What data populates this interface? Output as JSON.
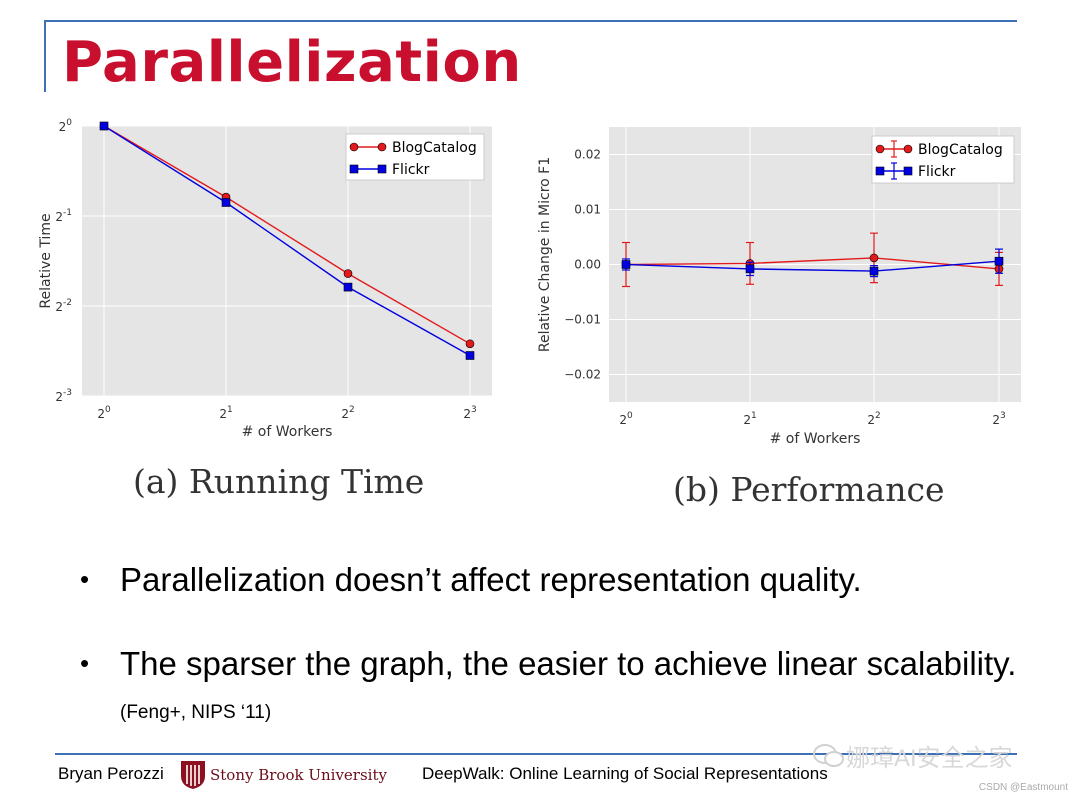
{
  "slide": {
    "title": "Parallelization",
    "captions": {
      "a": "(a) Running Time",
      "b": "(b) Performance"
    },
    "bullets": [
      {
        "text": "Parallelization doesn’t affect representation quality.",
        "cite": ""
      },
      {
        "text": "The sparser the graph, the easier to achieve linear scalability.",
        "cite": "(Feng+, NIPS ‘11)"
      }
    ]
  },
  "footer": {
    "author": "Bryan Perozzi",
    "university": "Stony Brook University",
    "talk": "DeepWalk: Online Learning of Social Representations",
    "watermark": "娜璋AI安全之家",
    "credit": "CSDN @Eastmount"
  },
  "colors": {
    "blogcatalog": "#e31a1c",
    "flickr": "#0000e0",
    "plot_bg": "#e5e5e5",
    "title": "#c8102e"
  },
  "chart_data": [
    {
      "type": "line",
      "id": "running-time",
      "xlabel": "# of Workers",
      "ylabel": "Relative Time",
      "x_scale": "log2",
      "y_scale": "log2",
      "x": [
        1,
        2,
        4,
        8
      ],
      "xticks": [
        "2^0",
        "2^1",
        "2^2",
        "2^3"
      ],
      "yticks": [
        "2^0",
        "2^-1",
        "2^-2",
        "2^-3"
      ],
      "ylim_log2": [
        -3,
        0
      ],
      "series": [
        {
          "name": "BlogCatalog",
          "marker": "circle",
          "values_log2": [
            0,
            -0.79,
            -1.64,
            -2.42
          ]
        },
        {
          "name": "Flickr",
          "marker": "square",
          "values_log2": [
            0,
            -0.85,
            -1.79,
            -2.55
          ]
        }
      ],
      "legend": "top-right",
      "grid": true
    },
    {
      "type": "line",
      "id": "performance",
      "xlabel": "# of Workers",
      "ylabel": "Relative Change in Micro F1",
      "x_scale": "log2",
      "x": [
        1,
        2,
        4,
        8
      ],
      "xticks": [
        "2^0",
        "2^1",
        "2^2",
        "2^3"
      ],
      "yticks": [
        "0.02",
        "0.01",
        "0.00",
        "−0.01",
        "−0.02"
      ],
      "ylim": [
        -0.025,
        0.025
      ],
      "series": [
        {
          "name": "BlogCatalog",
          "marker": "circle",
          "errorbars": true,
          "values": [
            0.0,
            0.0002,
            0.0012,
            -0.0008
          ],
          "err": [
            0.004,
            0.0038,
            0.0045,
            0.003
          ]
        },
        {
          "name": "Flickr",
          "marker": "square",
          "errorbars": true,
          "values": [
            0.0,
            -0.0008,
            -0.0012,
            0.0006
          ],
          "err": [
            0.001,
            0.0012,
            0.001,
            0.0022
          ]
        }
      ],
      "legend": "top-right",
      "grid": true
    }
  ]
}
